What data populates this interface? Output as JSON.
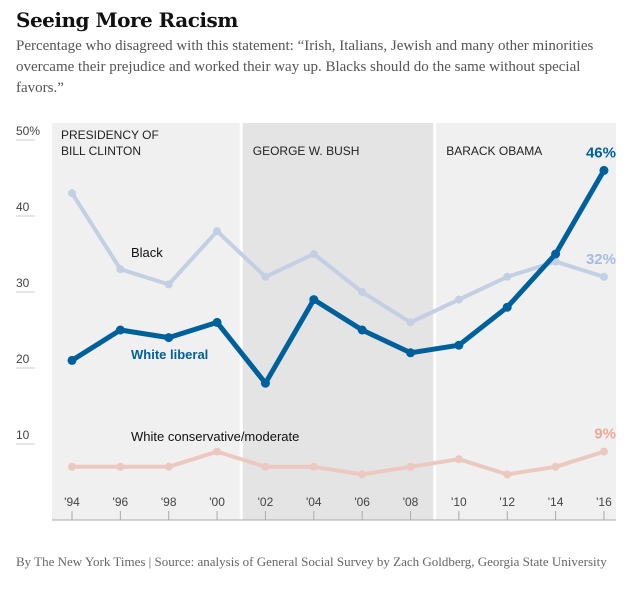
{
  "title": "Seeing More Racism",
  "subtitle": "Percentage who disagreed with this statement: “Irish, Italians, Jewish and many other minorities overcame their prejudice and worked their way up. Blacks should do the same without special favors.”",
  "footer": "By The New York Times | Source: analysis of General Social Survey by Zach Goldberg, Georgia State University",
  "chart_data": {
    "type": "line",
    "x": [
      "'94",
      "'96",
      "'98",
      "'00",
      "'02",
      "'04",
      "'06",
      "'08",
      "'10",
      "'12",
      "'14",
      "'16"
    ],
    "ylim": [
      0,
      50
    ],
    "yticks": [
      {
        "v": 50,
        "label": "50%"
      },
      {
        "v": 40,
        "label": "40"
      },
      {
        "v": 30,
        "label": "30"
      },
      {
        "v": 20,
        "label": "20"
      },
      {
        "v": 10,
        "label": "10"
      }
    ],
    "periods": [
      {
        "label1": "PRESIDENCY OF",
        "label2": "BILL CLINTON",
        "from": 0,
        "to": 3.5,
        "color": "#f0f0f0"
      },
      {
        "label1": "GEORGE W. BUSH",
        "label2": "",
        "from": 3.5,
        "to": 7.5,
        "color": "#e4e4e4"
      },
      {
        "label1": "BARACK OBAMA",
        "label2": "",
        "from": 7.5,
        "to": 11.5,
        "color": "#f0f0f0"
      }
    ],
    "series": [
      {
        "name": "Black",
        "values": [
          43,
          33,
          31,
          38,
          32,
          35,
          30,
          26,
          29,
          32,
          34,
          32
        ],
        "color": "#c3cfe2",
        "end_label": "32%",
        "label_color": "#111",
        "width": 4
      },
      {
        "name": "White conservative/moderate",
        "values": [
          7,
          7,
          7,
          9,
          7,
          7,
          6,
          7,
          8,
          6,
          7,
          9
        ],
        "color": "#ecc9c0",
        "end_label": "9%",
        "label_color": "#111",
        "width": 4
      },
      {
        "name": "White liberal",
        "values": [
          21,
          25,
          24,
          26,
          18,
          29,
          25,
          22,
          23,
          28,
          35,
          46
        ],
        "color": "#00609b",
        "end_label": "46%",
        "label_color": "#00609b",
        "width": 5
      }
    ],
    "end_label_colors": [
      "#a3bde0",
      "#eca898",
      "#00609b"
    ]
  }
}
